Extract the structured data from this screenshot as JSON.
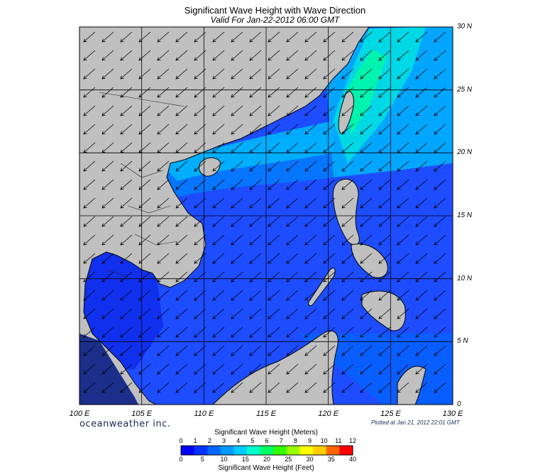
{
  "title": "Significant Wave Height with Wave Direction",
  "subtitle": "Valid For Jan-22-2012 06:00 GMT",
  "brand": "oceanweather inc.",
  "plotted": "Plotted at Jan 21, 2012 22:01 GMT",
  "map": {
    "lon_range": [
      100,
      130
    ],
    "lat_range": [
      0,
      30
    ],
    "lon_labels": [
      "100 E",
      "105 E",
      "110 E",
      "115 E",
      "120 E",
      "125 E",
      "130 E"
    ],
    "lat_labels": [
      "30 N",
      "25 N",
      "20 N",
      "15 N",
      "10 N",
      "5 N",
      "0"
    ],
    "land_color": "#c0c0c0",
    "grid": true,
    "arrow_direction": "from northeast, pointing southwest"
  },
  "legend": {
    "meters_title": "Significant Wave Height (Meters)",
    "feet_title": "Significant Wave Height (Feet)",
    "meters_ticks": [
      "0",
      "1",
      "2",
      "3",
      "4",
      "5",
      "6",
      "7",
      "8",
      "9",
      "10",
      "11",
      "12"
    ],
    "feet_ticks": [
      "0",
      "5",
      "10",
      "15",
      "20",
      "25",
      "30",
      "35",
      "40"
    ],
    "colors": [
      "#0000ff",
      "#0033ff",
      "#0066ff",
      "#0099ff",
      "#00ccff",
      "#00ffcc",
      "#00ff66",
      "#33ff00",
      "#99ff00",
      "#ffff00",
      "#ffcc00",
      "#ff6600",
      "#ff0000"
    ]
  }
}
